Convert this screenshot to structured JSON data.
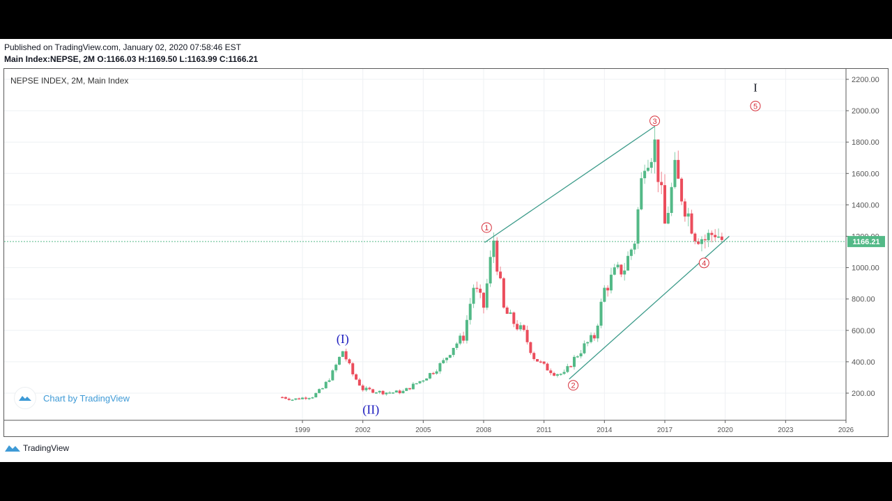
{
  "header": {
    "published": "Published on TradingView.com, January 02, 2020 07:58:46 EST",
    "ohlc": "Main Index:NEPSE, 2M O:1166.03 H:1169.50 L:1163.99 C:1166.21"
  },
  "chart": {
    "legend_title": "NEPSE INDEX, 2M, Main Index",
    "last_price_label": "1166.21",
    "watermark_label": "Chart by TradingView",
    "footer_brand": "TradingView"
  },
  "colors": {
    "up": "#53b987",
    "down": "#eb4d5c",
    "trendline": "#3c9b8a",
    "price_line": "#53b987",
    "wave_primary": "#1d1dbf",
    "wave_minor": "#d62f3a",
    "brand": "#3e9ad6"
  },
  "annotations": [
    {
      "label": "(I)",
      "year": 2001.0,
      "price": 545,
      "style": "primary"
    },
    {
      "label": "(II)",
      "year": 2002.4,
      "price": 95,
      "style": "primary"
    },
    {
      "label": "1",
      "year": 2008.15,
      "price": 1255,
      "style": "minor"
    },
    {
      "label": "2",
      "year": 2012.45,
      "price": 250,
      "style": "minor"
    },
    {
      "label": "3",
      "year": 2016.5,
      "price": 1935,
      "style": "minor"
    },
    {
      "label": "4",
      "year": 2018.95,
      "price": 1030,
      "style": "minor"
    },
    {
      "label": "5",
      "year": 2021.5,
      "price": 2030,
      "style": "minor"
    },
    {
      "label": "I",
      "year": 2021.5,
      "price": 2150,
      "style": "cycle"
    }
  ],
  "chart_data": {
    "type": "candlestick",
    "title": "NEPSE INDEX, 2M, Main Index",
    "xlabel": "",
    "ylabel": "",
    "x_ticks": [
      "1999",
      "2002",
      "2005",
      "2008",
      "2011",
      "2014",
      "2017",
      "2020",
      "2023",
      "2026"
    ],
    "y_ticks": [
      "200.00",
      "400.00",
      "600.00",
      "800.00",
      "1000.00",
      "1200.00",
      "1400.00",
      "1600.00",
      "1800.00",
      "2000.00",
      "2200.00"
    ],
    "ylim": [
      40,
      2240
    ],
    "xlim": [
      1985.0,
      2027.4
    ],
    "grid": true,
    "last_price": 1166.21,
    "series": [
      {
        "name": "NEPSE",
        "close_approx": [
          [
            1998.0,
            175
          ],
          [
            1998.5,
            160
          ],
          [
            1999.0,
            170
          ],
          [
            1999.5,
            180
          ],
          [
            2000.0,
            230
          ],
          [
            2000.5,
            330
          ],
          [
            2001.0,
            470
          ],
          [
            2001.5,
            320
          ],
          [
            2002.0,
            225
          ],
          [
            2002.5,
            215
          ],
          [
            2003.0,
            205
          ],
          [
            2003.5,
            205
          ],
          [
            2004.0,
            210
          ],
          [
            2004.5,
            250
          ],
          [
            2005.0,
            290
          ],
          [
            2005.5,
            340
          ],
          [
            2006.0,
            400
          ],
          [
            2006.5,
            500
          ],
          [
            2007.0,
            560
          ],
          [
            2007.5,
            880
          ],
          [
            2008.0,
            750
          ],
          [
            2008.5,
            1180
          ],
          [
            2009.0,
            730
          ],
          [
            2009.5,
            650
          ],
          [
            2010.0,
            580
          ],
          [
            2010.5,
            430
          ],
          [
            2011.0,
            370
          ],
          [
            2011.5,
            330
          ],
          [
            2012.0,
            320
          ],
          [
            2012.5,
            420
          ],
          [
            2013.0,
            500
          ],
          [
            2013.5,
            560
          ],
          [
            2014.0,
            860
          ],
          [
            2014.5,
            960
          ],
          [
            2015.0,
            1000
          ],
          [
            2015.5,
            1180
          ],
          [
            2016.0,
            1720
          ],
          [
            2016.5,
            1780
          ],
          [
            2017.0,
            1270
          ],
          [
            2017.5,
            1600
          ],
          [
            2018.0,
            1400
          ],
          [
            2018.5,
            1220
          ],
          [
            2019.0,
            1180
          ],
          [
            2019.5,
            1230
          ],
          [
            2019.9,
            1166
          ]
        ]
      }
    ],
    "trendlines": [
      {
        "from": [
          2008.05,
          1160
        ],
        "to": [
          2016.5,
          1900
        ]
      },
      {
        "from": [
          2012.25,
          290
        ],
        "to": [
          2020.2,
          1200
        ]
      }
    ]
  }
}
